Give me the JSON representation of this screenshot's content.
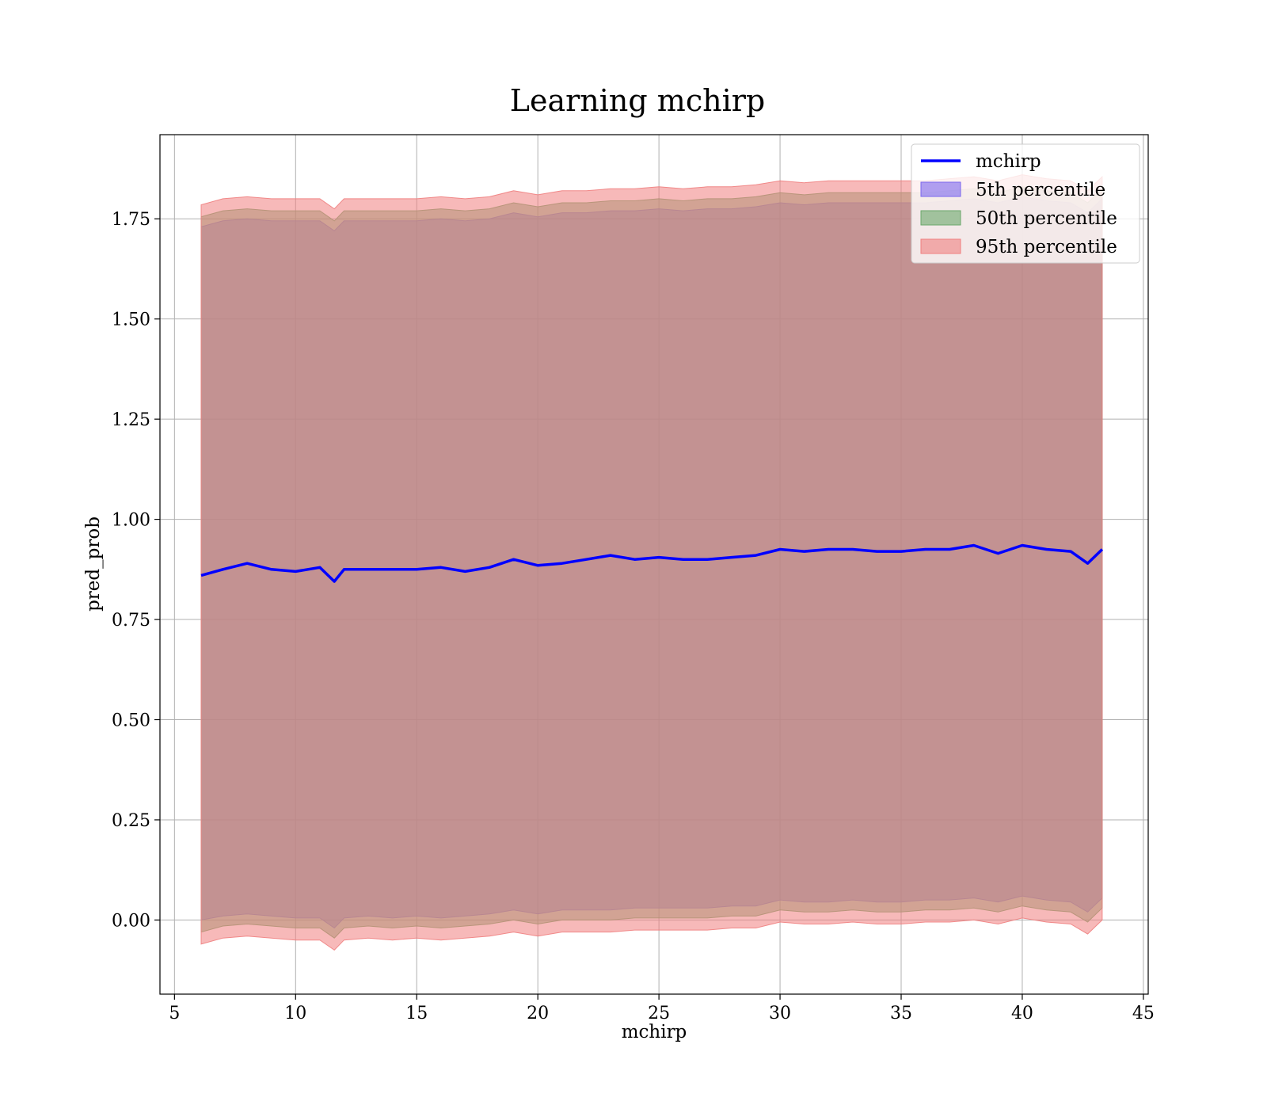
{
  "chart_data": {
    "type": "area",
    "title": "Learning mchirp",
    "xlabel": "mchirp",
    "ylabel": "pred_prob",
    "xlim": [
      4.4,
      45.2
    ],
    "ylim": [
      -0.185,
      1.96
    ],
    "xticks": [
      5,
      10,
      15,
      20,
      25,
      30,
      35,
      40,
      45
    ],
    "xtick_labels": [
      "5",
      "10",
      "15",
      "20",
      "25",
      "30",
      "35",
      "40",
      "45"
    ],
    "yticks": [
      0.0,
      0.25,
      0.5,
      0.75,
      1.0,
      1.25,
      1.5,
      1.75
    ],
    "ytick_labels": [
      "0.00",
      "0.25",
      "0.50",
      "0.75",
      "1.00",
      "1.25",
      "1.50",
      "1.75"
    ],
    "grid": true,
    "legend_position": "top-right",
    "x": [
      6.1,
      7.0,
      8.0,
      9.0,
      10.0,
      11.0,
      11.6,
      12.0,
      13.0,
      14.0,
      15.0,
      16.0,
      17.0,
      18.0,
      19.0,
      20.0,
      21.0,
      22.0,
      23.0,
      24.0,
      25.0,
      26.0,
      27.0,
      28.0,
      29.0,
      30.0,
      31.0,
      32.0,
      33.0,
      34.0,
      35.0,
      36.0,
      37.0,
      38.0,
      39.0,
      40.0,
      41.0,
      42.0,
      42.7,
      43.3
    ],
    "series": [
      {
        "name": "mchirp",
        "kind": "line",
        "color": "#0000ff",
        "values": [
          0.86,
          0.875,
          0.89,
          0.875,
          0.87,
          0.88,
          0.845,
          0.875,
          0.875,
          0.875,
          0.875,
          0.88,
          0.87,
          0.88,
          0.9,
          0.885,
          0.89,
          0.9,
          0.91,
          0.9,
          0.905,
          0.9,
          0.9,
          0.905,
          0.91,
          0.925,
          0.92,
          0.925,
          0.925,
          0.92,
          0.92,
          0.925,
          0.925,
          0.935,
          0.915,
          0.935,
          0.925,
          0.92,
          0.89,
          0.925
        ]
      },
      {
        "name": "5th percentile",
        "kind": "band",
        "color": "#7b68ee",
        "lower": [
          0.0,
          0.01,
          0.015,
          0.01,
          0.005,
          0.005,
          -0.02,
          0.005,
          0.01,
          0.005,
          0.01,
          0.005,
          0.01,
          0.015,
          0.025,
          0.015,
          0.025,
          0.025,
          0.025,
          0.03,
          0.03,
          0.03,
          0.03,
          0.035,
          0.035,
          0.05,
          0.045,
          0.045,
          0.05,
          0.045,
          0.045,
          0.05,
          0.05,
          0.055,
          0.045,
          0.06,
          0.05,
          0.045,
          0.02,
          0.055
        ],
        "upper": [
          1.73,
          1.745,
          1.75,
          1.745,
          1.745,
          1.745,
          1.72,
          1.745,
          1.745,
          1.745,
          1.745,
          1.75,
          1.745,
          1.75,
          1.765,
          1.755,
          1.765,
          1.765,
          1.77,
          1.77,
          1.775,
          1.77,
          1.775,
          1.775,
          1.78,
          1.79,
          1.785,
          1.79,
          1.79,
          1.79,
          1.79,
          1.79,
          1.795,
          1.8,
          1.79,
          1.805,
          1.795,
          1.79,
          1.765,
          1.8
        ]
      },
      {
        "name": "50th percentile",
        "kind": "band",
        "color": "#6aa86a",
        "lower": [
          -0.03,
          -0.015,
          -0.01,
          -0.015,
          -0.02,
          -0.02,
          -0.045,
          -0.02,
          -0.015,
          -0.02,
          -0.015,
          -0.02,
          -0.015,
          -0.01,
          0.0,
          -0.01,
          0.0,
          0.0,
          0.0,
          0.005,
          0.005,
          0.005,
          0.005,
          0.01,
          0.01,
          0.025,
          0.02,
          0.02,
          0.025,
          0.02,
          0.02,
          0.025,
          0.025,
          0.03,
          0.02,
          0.035,
          0.025,
          0.02,
          -0.005,
          0.03
        ],
        "upper": [
          1.755,
          1.77,
          1.775,
          1.77,
          1.77,
          1.77,
          1.745,
          1.77,
          1.77,
          1.77,
          1.77,
          1.775,
          1.77,
          1.775,
          1.79,
          1.78,
          1.79,
          1.79,
          1.795,
          1.795,
          1.8,
          1.795,
          1.8,
          1.8,
          1.805,
          1.815,
          1.81,
          1.815,
          1.815,
          1.815,
          1.815,
          1.815,
          1.82,
          1.825,
          1.815,
          1.83,
          1.82,
          1.815,
          1.79,
          1.825
        ]
      },
      {
        "name": "95th percentile",
        "kind": "band",
        "color": "#f08080",
        "lower": [
          -0.06,
          -0.045,
          -0.04,
          -0.045,
          -0.05,
          -0.05,
          -0.075,
          -0.05,
          -0.045,
          -0.05,
          -0.045,
          -0.05,
          -0.045,
          -0.04,
          -0.03,
          -0.04,
          -0.03,
          -0.03,
          -0.03,
          -0.025,
          -0.025,
          -0.025,
          -0.025,
          -0.02,
          -0.02,
          -0.005,
          -0.01,
          -0.01,
          -0.005,
          -0.01,
          -0.01,
          -0.005,
          -0.005,
          0.0,
          -0.01,
          0.005,
          -0.005,
          -0.01,
          -0.035,
          0.0
        ],
        "upper": [
          1.785,
          1.8,
          1.805,
          1.8,
          1.8,
          1.8,
          1.775,
          1.8,
          1.8,
          1.8,
          1.8,
          1.805,
          1.8,
          1.805,
          1.82,
          1.81,
          1.82,
          1.82,
          1.825,
          1.825,
          1.83,
          1.825,
          1.83,
          1.83,
          1.835,
          1.845,
          1.84,
          1.845,
          1.845,
          1.845,
          1.845,
          1.845,
          1.85,
          1.855,
          1.845,
          1.86,
          1.85,
          1.845,
          1.82,
          1.855
        ]
      }
    ]
  }
}
